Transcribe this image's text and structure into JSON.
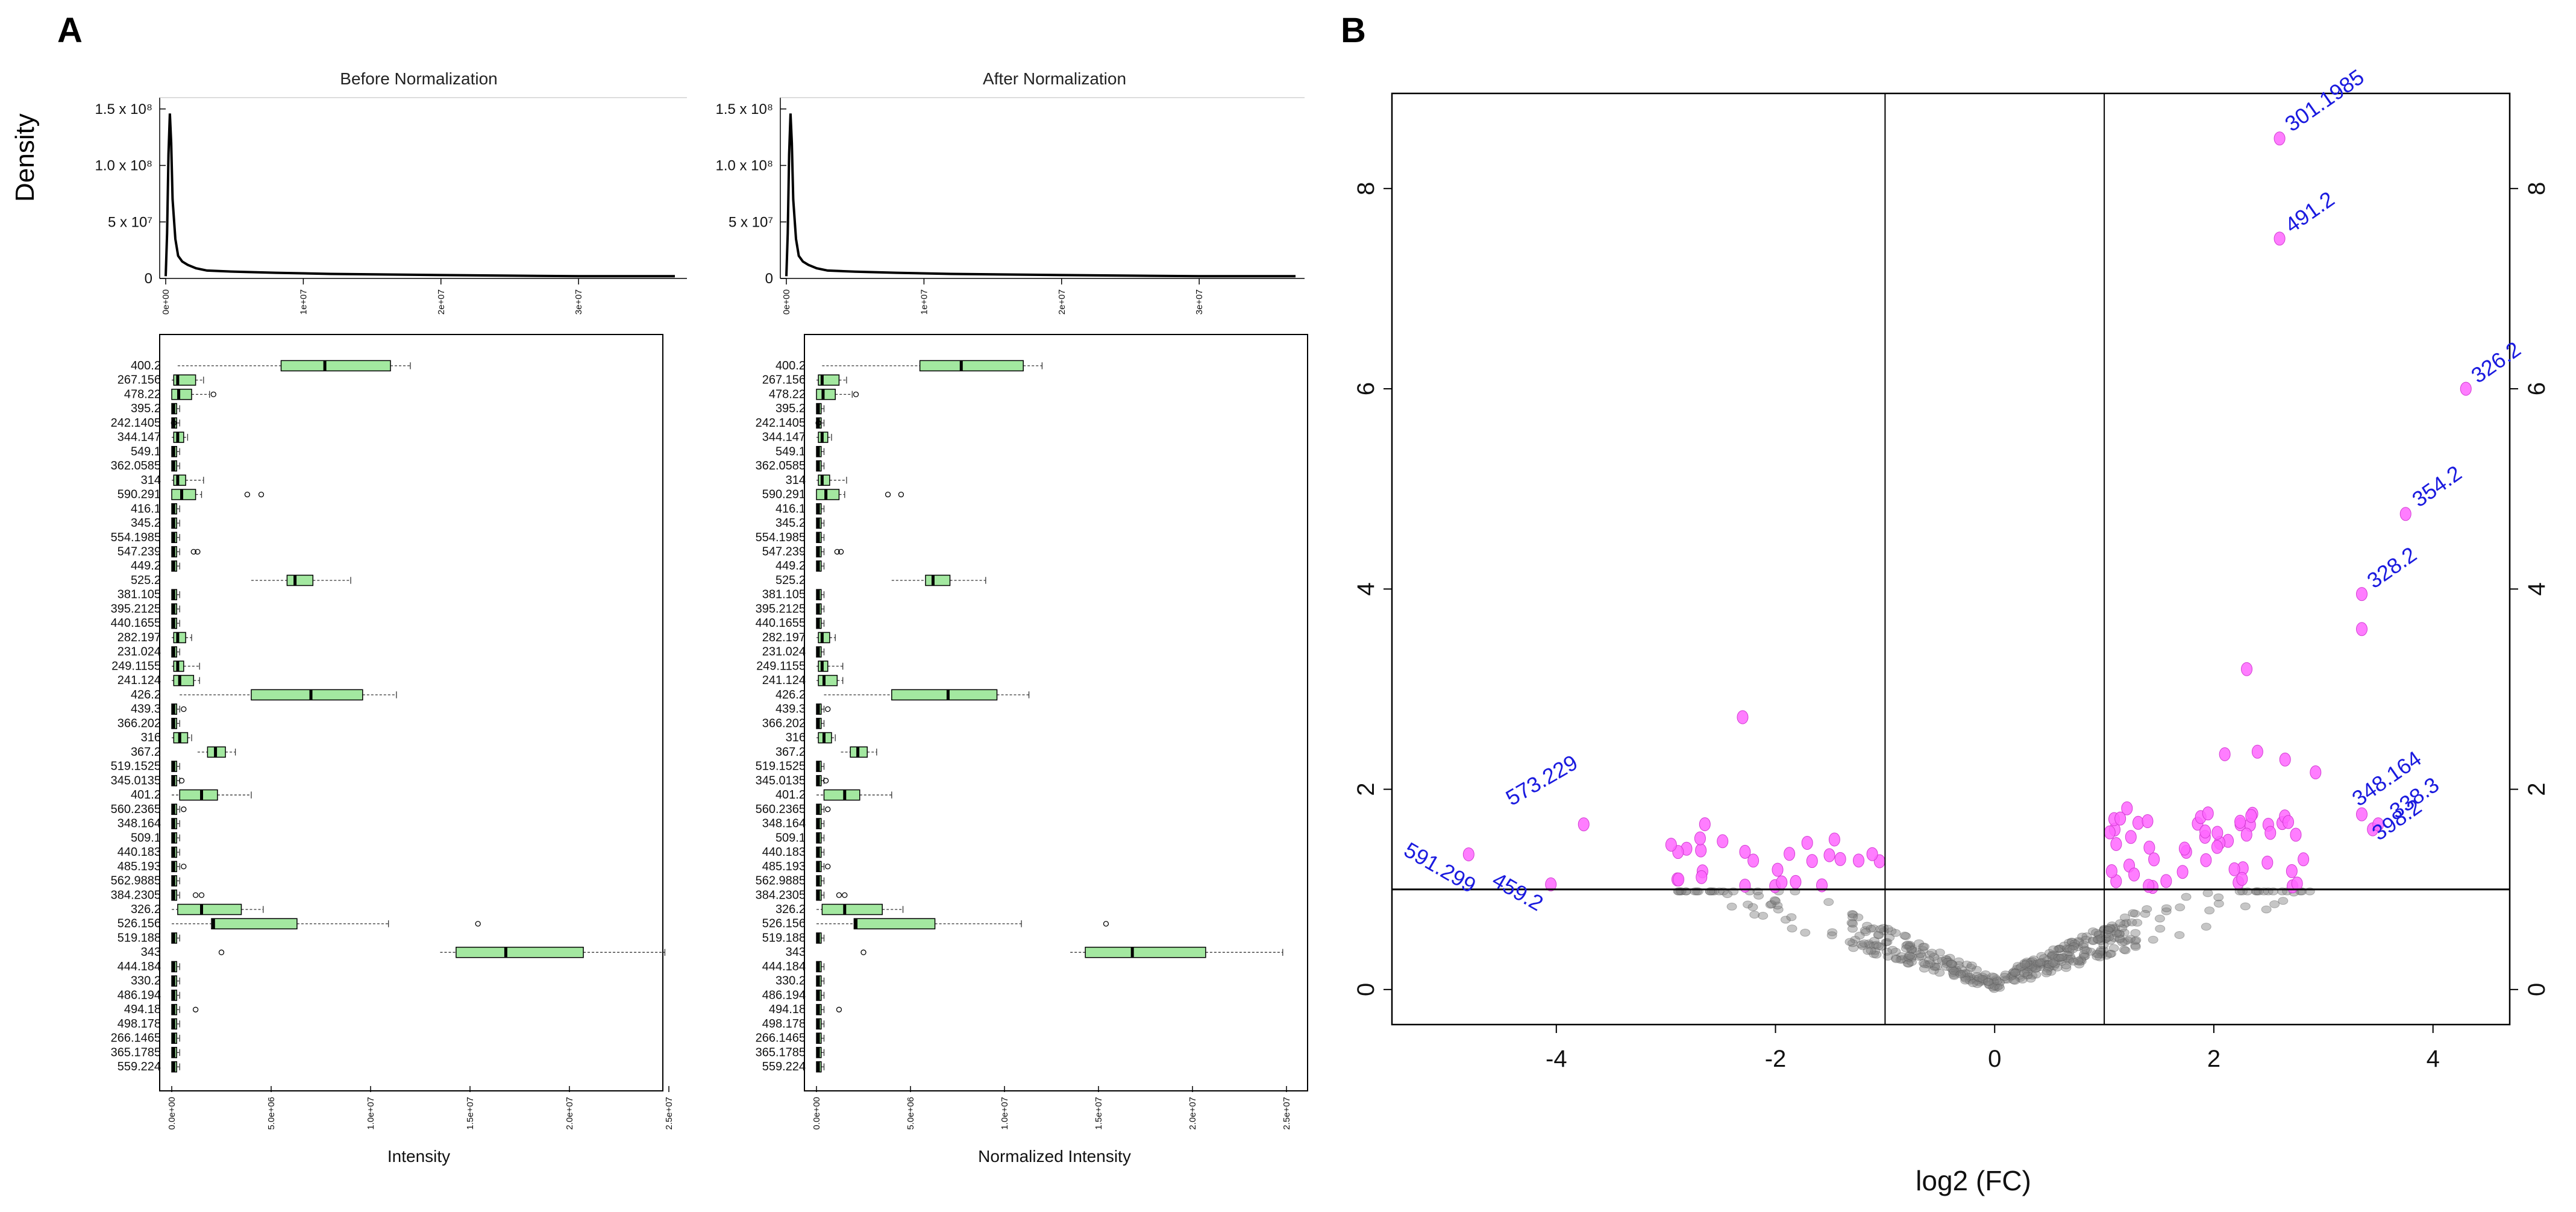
{
  "panel_labels": {
    "a": "A",
    "b": "B"
  },
  "density_ylabel": "Density",
  "colors": {
    "box_fill": "#a3e8a0",
    "sig_point": "#ff66ff",
    "nonsig_point": "#808080",
    "label_blue": "#1a1adf"
  },
  "chart_data": [
    {
      "type": "line",
      "title": "Before Normalization",
      "ylabel": "Density",
      "y_ticks": [
        "0",
        "5 x 10⁷",
        "1.0 x 10⁸",
        "1.5 x 10⁸"
      ],
      "x_ticks": [
        "0e+00",
        "1e+07",
        "2e+07",
        "3e+07"
      ],
      "xlim": [
        0,
        37000000
      ],
      "ylim": [
        0,
        1.6
      ],
      "x": [
        0,
        100000,
        200000,
        300000,
        400000,
        500000,
        700000,
        900000,
        1200000,
        1600000,
        2200000,
        3000000,
        5000000,
        8000000,
        12000000,
        20000000,
        30000000,
        37000000
      ],
      "y": [
        0.02,
        0.4,
        1.1,
        1.46,
        1.2,
        0.7,
        0.35,
        0.2,
        0.15,
        0.12,
        0.09,
        0.07,
        0.06,
        0.05,
        0.04,
        0.03,
        0.02,
        0.02
      ]
    },
    {
      "type": "line",
      "title": "After Normalization",
      "y_ticks": [
        "0",
        "5 x 10⁷",
        "1.0 x 10⁸",
        "1.5 x 10⁸"
      ],
      "x_ticks": [
        "0e+00",
        "1e+07",
        "2e+07",
        "3e+07"
      ],
      "xlim": [
        0,
        37000000
      ],
      "ylim": [
        0,
        1.6
      ],
      "x": [
        0,
        100000,
        200000,
        300000,
        400000,
        500000,
        700000,
        900000,
        1200000,
        1600000,
        2200000,
        3000000,
        5000000,
        8000000,
        12000000,
        20000000,
        30000000,
        37000000
      ],
      "y": [
        0.02,
        0.4,
        1.1,
        1.46,
        1.2,
        0.7,
        0.35,
        0.2,
        0.15,
        0.12,
        0.09,
        0.07,
        0.06,
        0.05,
        0.04,
        0.03,
        0.02,
        0.02
      ]
    },
    {
      "type": "box",
      "xlabel": "Intensity",
      "xlim": [
        0,
        25000000
      ],
      "x_ticks": [
        "0.0e+00",
        "5.0e+06",
        "1.0e+07",
        "1.5e+07",
        "2.0e+07",
        "2.5e+07"
      ],
      "categories": [
        "400.2",
        "267.156",
        "478.22",
        "395.2",
        "242.1405",
        "344.147",
        "549.1",
        "362.0585",
        "314",
        "590.291",
        "416.1",
        "345.2",
        "554.1985",
        "547.239",
        "449.2",
        "525.2",
        "381.105",
        "395.2125",
        "440.1655",
        "282.197",
        "231.024",
        "249.1155",
        "241.124",
        "426.2",
        "439.3",
        "366.202",
        "316",
        "367.2",
        "519.1525",
        "345.0135",
        "401.2",
        "560.2365",
        "348.164",
        "509.1",
        "440.183",
        "485.193",
        "562.9885",
        "384.2305",
        "326.2",
        "526.156",
        "519.188",
        "343",
        "444.184",
        "330.2",
        "486.194",
        "494.18",
        "498.178",
        "266.1465",
        "365.1785",
        "559.224"
      ]
    },
    {
      "type": "box",
      "xlabel": "Normalized Intensity",
      "xlim": [
        0,
        25000000
      ],
      "x_ticks": [
        "0.0e+00",
        "5.0e+06",
        "1.0e+07",
        "1.5e+07",
        "2.0e+07",
        "2.5e+07"
      ],
      "categories": [
        "400.2",
        "267.156",
        "478.22",
        "395.2",
        "242.1405",
        "344.147",
        "549.1",
        "362.0585",
        "314",
        "590.291",
        "416.1",
        "345.2",
        "554.1985",
        "547.239",
        "449.2",
        "525.2",
        "381.105",
        "395.2125",
        "440.1655",
        "282.197",
        "231.024",
        "249.1155",
        "241.124",
        "426.2",
        "439.3",
        "366.202",
        "316",
        "367.2",
        "519.1525",
        "345.0135",
        "401.2",
        "560.2365",
        "348.164",
        "509.1",
        "440.183",
        "485.193",
        "562.9885",
        "384.2305",
        "326.2",
        "526.156",
        "519.188",
        "343",
        "444.184",
        "330.2",
        "486.194",
        "494.18",
        "498.178",
        "266.1465",
        "365.1785",
        "559.224"
      ]
    },
    {
      "type": "scatter",
      "xlabel": "log2 (FC)",
      "xlim": [
        -5.5,
        4.7
      ],
      "ylim": [
        -0.35,
        8.95
      ],
      "x_ticks": [
        "-4",
        "-2",
        "0",
        "2",
        "4"
      ],
      "y_ticks": [
        "0",
        "2",
        "4",
        "6",
        "8"
      ],
      "thresholds": {
        "fc": [
          -1,
          1
        ],
        "p": 1
      },
      "labeled_points": [
        {
          "x": 2.6,
          "y": 8.5,
          "label": "301.1985"
        },
        {
          "x": 2.6,
          "y": 7.5,
          "label": "491.2"
        },
        {
          "x": 4.3,
          "y": 6.0,
          "label": "326.2"
        },
        {
          "x": 3.75,
          "y": 4.75,
          "label": "354.2"
        },
        {
          "x": 3.35,
          "y": 3.95,
          "label": "328.2"
        },
        {
          "x": 3.35,
          "y": 1.75,
          "label": "348.164"
        },
        {
          "x": 3.45,
          "y": 1.6,
          "label": "398.2"
        },
        {
          "x": 3.5,
          "y": 1.65,
          "label": "338.3"
        },
        {
          "x": -3.75,
          "y": 1.65,
          "label": "573.229"
        },
        {
          "x": -4.8,
          "y": 1.35,
          "label": "591.299"
        },
        {
          "x": -4.05,
          "y": 1.05,
          "label": "459.2"
        }
      ]
    }
  ]
}
